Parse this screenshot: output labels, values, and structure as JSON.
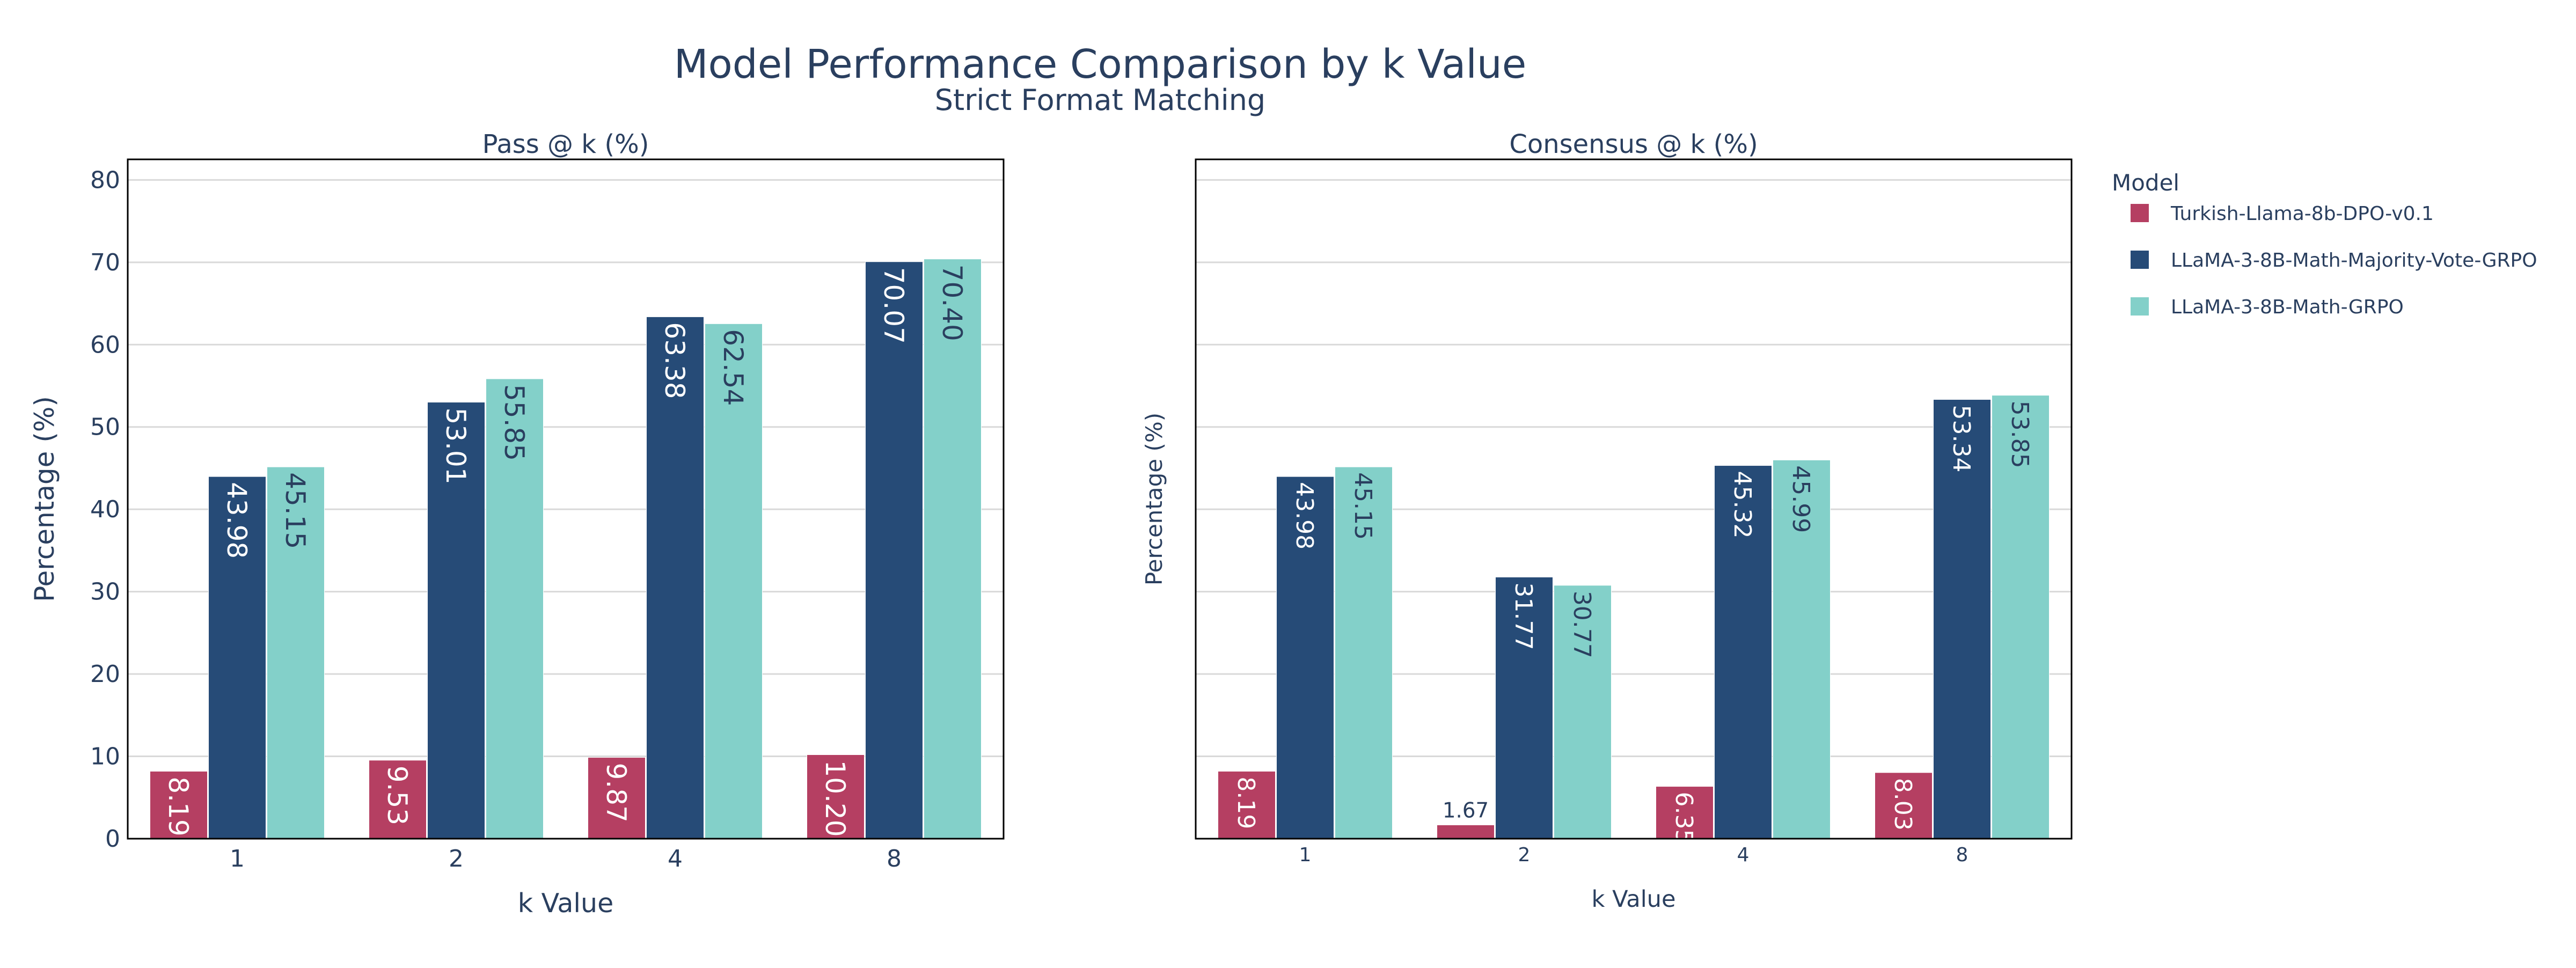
{
  "title": "Model Performance Comparison by k Value",
  "subtitle": "Strict Format Matching",
  "legend": {
    "title": "Model",
    "placement": "right"
  },
  "colors": {
    "text": "#2a3f5f",
    "grid": "#d9d9d9",
    "axis": "#444444",
    "label_light": "#ffffff",
    "label_dark": "#2a3f5f"
  },
  "chart_data": [
    {
      "type": "bar",
      "title": "Pass @ k (%)",
      "xlabel": "k Value",
      "ylabel": "Percentage (%)",
      "categories": [
        "1",
        "2",
        "4",
        "8"
      ],
      "ylim": [
        0,
        82.5
      ],
      "yticks": [
        0,
        10,
        20,
        30,
        40,
        50,
        60,
        70,
        80
      ],
      "grid": true,
      "series": [
        {
          "name": "Turkish-Llama-8b-DPO-v0.1",
          "color": "#b53f62",
          "values": [
            8.19,
            9.53,
            9.87,
            10.2
          ],
          "labels": [
            "8.19",
            "9.53",
            "9.87",
            "10.20"
          ]
        },
        {
          "name": "LLaMA-3-8B-Math-Majority-Vote-GRPO",
          "color": "#264b77",
          "values": [
            43.98,
            53.01,
            63.38,
            70.07
          ],
          "labels": [
            "43.98",
            "53.01",
            "63.38",
            "70.07"
          ]
        },
        {
          "name": "LLaMA-3-8B-Math-GRPO",
          "color": "#83d0c9",
          "values": [
            45.15,
            55.85,
            62.54,
            70.4
          ],
          "labels": [
            "45.15",
            "55.85",
            "62.54",
            "70.40"
          ]
        }
      ]
    },
    {
      "type": "bar",
      "title": "Consensus @ k (%)",
      "xlabel": "k Value",
      "ylabel": "Percentage (%)",
      "categories": [
        "1",
        "2",
        "4",
        "8"
      ],
      "ylim": [
        0,
        82.5
      ],
      "yticks": [],
      "grid": true,
      "series": [
        {
          "name": "Turkish-Llama-8b-DPO-v0.1",
          "color": "#b53f62",
          "values": [
            8.19,
            1.67,
            6.35,
            8.03
          ],
          "labels": [
            "8.19",
            "1.67",
            "6.35",
            "8.03"
          ]
        },
        {
          "name": "LLaMA-3-8B-Math-Majority-Vote-GRPO",
          "color": "#264b77",
          "values": [
            43.98,
            31.77,
            45.32,
            53.34
          ],
          "labels": [
            "43.98",
            "31.77",
            "45.32",
            "53.34"
          ]
        },
        {
          "name": "LLaMA-3-8B-Math-GRPO",
          "color": "#83d0c9",
          "values": [
            45.15,
            30.77,
            45.99,
            53.85
          ],
          "labels": [
            "45.15",
            "30.77",
            "45.99",
            "53.85"
          ]
        }
      ]
    }
  ]
}
